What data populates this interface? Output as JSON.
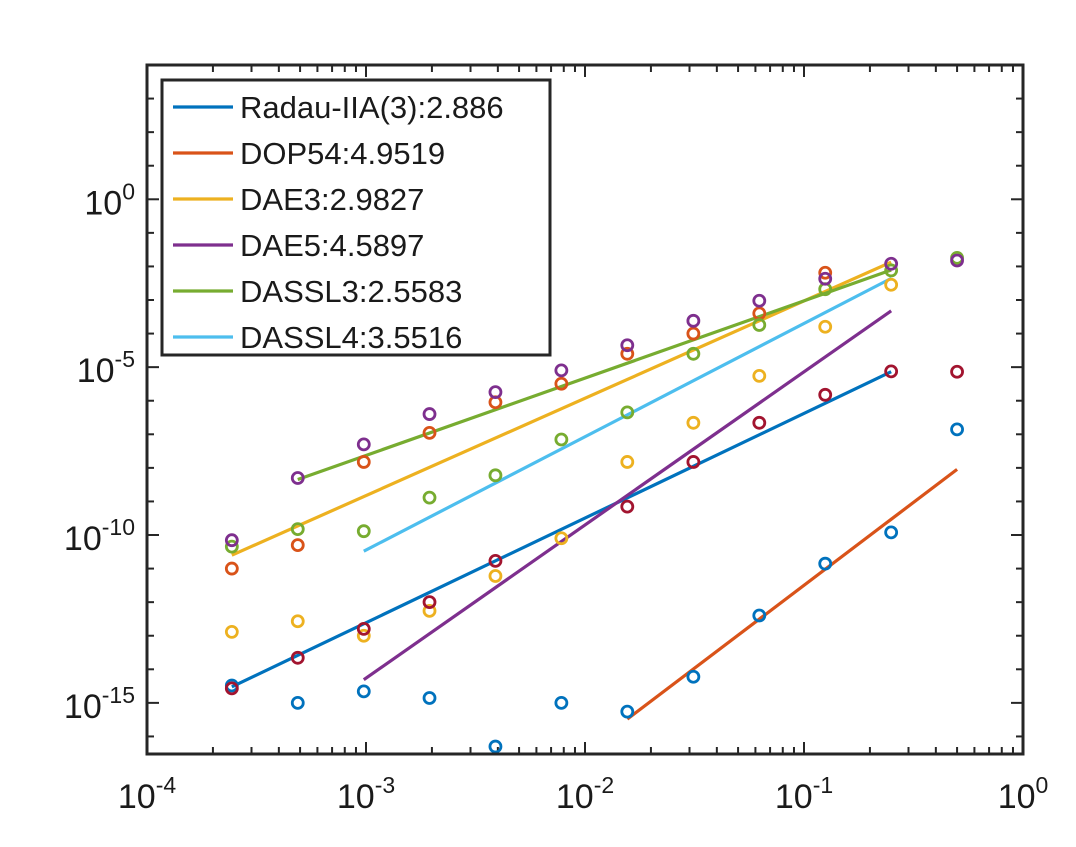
{
  "chart_data": {
    "type": "scatter",
    "title": "",
    "xlabel": "",
    "ylabel": "",
    "xscale": "log",
    "yscale": "log",
    "xlim": [
      0.0001,
      1
    ],
    "ylim": [
      3e-17,
      10000.0
    ],
    "x_ticks": [
      {
        "value": 0.0001,
        "base": "10",
        "exp": "-4"
      },
      {
        "value": 0.001,
        "base": "10",
        "exp": "-3"
      },
      {
        "value": 0.01,
        "base": "10",
        "exp": "-2"
      },
      {
        "value": 0.1,
        "base": "10",
        "exp": "-1"
      },
      {
        "value": 1,
        "base": "10",
        "exp": "0"
      }
    ],
    "y_ticks": [
      {
        "value": 1,
        "base": "10",
        "exp": "0"
      },
      {
        "value": 1e-05,
        "base": "10",
        "exp": "-5"
      },
      {
        "value": 1e-10,
        "base": "10",
        "exp": "-10"
      },
      {
        "value": 1e-15,
        "base": "10",
        "exp": "-15"
      }
    ],
    "legend_position": "top-left",
    "series": [
      {
        "name": "Radau-IIA(3):2.886",
        "color": "#0072BD",
        "line": [
          [
            0.000244,
            3e-15
          ],
          [
            0.25,
            7.3e-06
          ]
        ]
      },
      {
        "name": "DOP54:4.9519",
        "color": "#D95319",
        "line": [
          [
            0.0156,
            3.3e-16
          ],
          [
            0.5,
            9e-09
          ]
        ]
      },
      {
        "name": "DAE3:2.9827",
        "color": "#EDB120",
        "line": [
          [
            0.000244,
            2.5e-11
          ],
          [
            0.25,
            0.0134
          ]
        ]
      },
      {
        "name": "DAE5:4.5897",
        "color": "#7E2F8E",
        "line": [
          [
            0.000977,
            4.9e-15
          ],
          [
            0.25,
            0.000475
          ]
        ]
      },
      {
        "name": "DASSL3:2.5583",
        "color": "#77AC30",
        "line": [
          [
            0.000488,
            4.5e-09
          ],
          [
            0.25,
            0.0078
          ]
        ]
      },
      {
        "name": "DASSL4:3.5516",
        "color": "#4DBEEE",
        "line": [
          [
            0.000977,
            3.3e-11
          ],
          [
            0.25,
            0.0044
          ]
        ]
      }
    ],
    "marker_groups": [
      {
        "color": "#0072BD",
        "points": [
          [
            0.000244,
            3.3e-15
          ],
          [
            0.000488,
            1e-15
          ],
          [
            0.000977,
            2.2e-15
          ],
          [
            0.00195,
            1.4e-15
          ],
          [
            0.0039,
            5e-17
          ],
          [
            0.0078,
            1e-15
          ],
          [
            0.0156,
            5.5e-16
          ],
          [
            0.03125,
            6e-15
          ],
          [
            0.0625,
            4e-13
          ],
          [
            0.125,
            1.4e-11
          ],
          [
            0.25,
            1.2e-10
          ],
          [
            0.5,
            1.4e-07
          ]
        ]
      },
      {
        "color": "#EDB120",
        "points": [
          [
            0.000244,
            1.3e-13
          ],
          [
            0.000488,
            2.7e-13
          ],
          [
            0.000977,
            1e-13
          ],
          [
            0.00195,
            5.5e-13
          ],
          [
            0.0039,
            6e-12
          ],
          [
            0.0078,
            8e-11
          ],
          [
            0.0156,
            1.5e-08
          ],
          [
            0.03125,
            2.2e-07
          ],
          [
            0.0625,
            5.5e-06
          ],
          [
            0.125,
            0.00016
          ],
          [
            0.25,
            0.00285
          ]
        ]
      },
      {
        "color": "#D95319",
        "points": [
          [
            0.000244,
            1e-11
          ],
          [
            0.000488,
            5e-11
          ],
          [
            0.000977,
            1.5e-08
          ],
          [
            0.00195,
            1.1e-07
          ],
          [
            0.0039,
            9e-07
          ],
          [
            0.0078,
            3.2e-06
          ],
          [
            0.0156,
            2.5e-05
          ],
          [
            0.03125,
            0.0001
          ],
          [
            0.0625,
            0.0004
          ],
          [
            0.125,
            0.0065
          ]
        ]
      },
      {
        "color": "#77AC30",
        "points": [
          [
            0.000244,
            4.5e-11
          ],
          [
            0.000488,
            1.5e-10
          ],
          [
            0.000977,
            1.3e-10
          ],
          [
            0.00195,
            1.3e-09
          ],
          [
            0.0039,
            6e-09
          ],
          [
            0.0078,
            7e-08
          ],
          [
            0.0156,
            4.5e-07
          ],
          [
            0.03125,
            2.5e-05
          ],
          [
            0.0625,
            0.00018
          ],
          [
            0.125,
            0.0021
          ],
          [
            0.25,
            0.0076
          ],
          [
            0.5,
            0.018
          ]
        ]
      },
      {
        "color": "#7E2F8E",
        "points": [
          [
            0.000244,
            7e-11
          ],
          [
            0.000488,
            5e-09
          ],
          [
            0.000977,
            5e-08
          ],
          [
            0.00195,
            4e-07
          ],
          [
            0.0039,
            1.8e-06
          ],
          [
            0.0078,
            8e-06
          ],
          [
            0.0156,
            4.5e-05
          ],
          [
            0.03125,
            0.00024
          ],
          [
            0.0625,
            0.00095
          ],
          [
            0.125,
            0.0043
          ],
          [
            0.25,
            0.012
          ],
          [
            0.5,
            0.015
          ]
        ]
      },
      {
        "color": "#A2142F",
        "points": [
          [
            0.000244,
            2.7e-15
          ],
          [
            0.000488,
            2.2e-14
          ],
          [
            0.000977,
            1.6e-13
          ],
          [
            0.00195,
            1e-12
          ],
          [
            0.0039,
            1.7e-11
          ],
          [
            0.0156,
            7e-10
          ],
          [
            0.03125,
            1.5e-08
          ],
          [
            0.0625,
            2.2e-07
          ],
          [
            0.125,
            1.5e-06
          ],
          [
            0.25,
            7.5e-06
          ],
          [
            0.5,
            7.3e-06
          ]
        ]
      }
    ]
  }
}
